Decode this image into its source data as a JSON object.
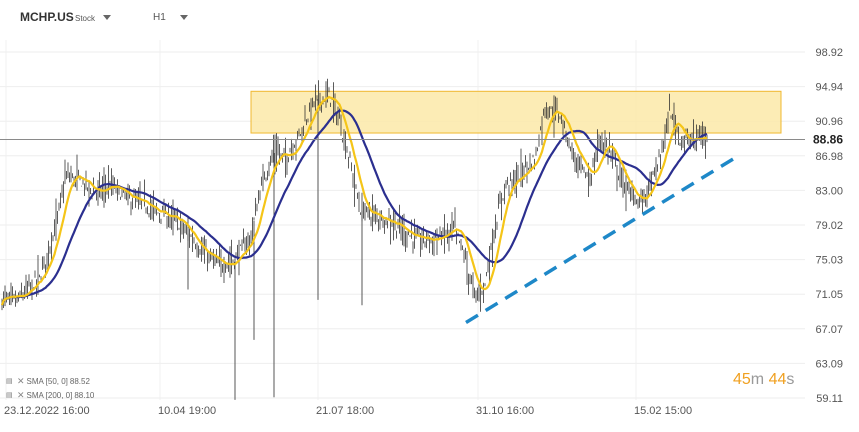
{
  "header": {
    "symbol": "MCHP.US",
    "symbol_type": "Stock",
    "timeframe": "H1"
  },
  "chart_data": {
    "type": "line",
    "chart_style": "bar",
    "y_ticks": [
      "98.92",
      "94.94",
      "90.96",
      "86.98",
      "83.00",
      "79.02",
      "75.03",
      "71.05",
      "67.07",
      "63.09",
      "59.11"
    ],
    "x_ticks": [
      "23.12.2022  16:00",
      "10.04  19:00",
      "21.07  18:00",
      "31.10  16:00",
      "15.02  15:00"
    ],
    "current_price": "88.86",
    "current_price_value": 88.86,
    "ylim": [
      59.11,
      98.92
    ],
    "grid": true,
    "series": [
      {
        "name": "SMA [50, 0]",
        "value": "88.52",
        "color": "#f5c518"
      },
      {
        "name": "SMA [200, 0]",
        "value": "88.10",
        "color": "#2b2f8f"
      }
    ],
    "resistance_zone": {
      "low": 89.6,
      "high": 94.4
    },
    "trendline": {
      "start_value": 67.8,
      "end_value": 86.6,
      "style": "dashed",
      "color": "#1e88c8"
    }
  },
  "legend": {
    "sma50_label": "SMA [50,  0]",
    "sma50_value": "88.52",
    "sma200_label": "SMA [200,  0]",
    "sma200_value": "88.10"
  },
  "countdown": {
    "minutes": "45",
    "minutes_unit": "m",
    "seconds": "44",
    "seconds_unit": "s"
  }
}
